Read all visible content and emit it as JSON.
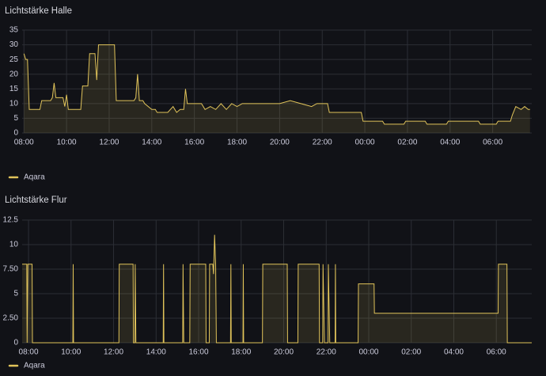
{
  "chart_data": [
    {
      "type": "line",
      "title": "Lichtstärke Halle",
      "x": [
        "08:00",
        "08:05",
        "08:10",
        "08:15",
        "08:45",
        "08:50",
        "09:15",
        "09:20",
        "09:25",
        "09:30",
        "09:50",
        "09:55",
        "10:00",
        "10:05",
        "10:40",
        "10:45",
        "11:00",
        "11:05",
        "11:20",
        "11:25",
        "11:30",
        "12:15",
        "12:20",
        "13:10",
        "13:15",
        "13:20",
        "13:25",
        "13:35",
        "13:40",
        "14:00",
        "14:10",
        "14:15",
        "14:45",
        "15:00",
        "15:10",
        "15:20",
        "15:30",
        "15:35",
        "15:40",
        "16:20",
        "16:30",
        "16:45",
        "17:00",
        "17:15",
        "17:30",
        "17:45",
        "18:00",
        "18:15",
        "18:30",
        "19:00",
        "19:30",
        "20:00",
        "20:30",
        "21:00",
        "21:30",
        "21:45",
        "22:15",
        "22:20",
        "23:50",
        "23:55",
        "00:50",
        "00:55",
        "01:50",
        "01:55",
        "02:50",
        "02:55",
        "03:50",
        "03:55",
        "05:20",
        "05:25",
        "06:10",
        "06:15",
        "06:50",
        "06:55",
        "07:05",
        "07:20",
        "07:30",
        "07:40",
        "07:45"
      ],
      "series": [
        {
          "name": "Aqara",
          "color": "#e0c35a",
          "values": [
            27,
            25,
            25,
            8,
            8,
            11,
            11,
            12,
            17,
            12,
            12,
            9,
            13,
            8,
            8,
            16,
            16,
            27,
            27,
            18,
            30,
            30,
            11,
            11,
            12,
            20,
            11,
            11,
            10,
            8,
            8,
            7,
            7,
            9,
            7,
            8,
            8,
            15,
            10,
            10,
            8,
            9,
            8,
            10,
            8,
            10,
            9,
            10,
            10,
            10,
            10,
            10,
            11,
            10,
            9,
            10,
            10,
            7,
            7,
            4,
            4,
            3,
            3,
            4,
            4,
            3,
            3,
            4,
            4,
            3,
            3,
            4,
            4,
            6,
            9,
            8,
            9,
            8,
            8
          ]
        }
      ],
      "xlim": [
        "07:55",
        "07:50"
      ],
      "xticks": [
        "08:00",
        "10:00",
        "12:00",
        "14:00",
        "16:00",
        "18:00",
        "20:00",
        "22:00",
        "00:00",
        "02:00",
        "04:00",
        "06:00"
      ],
      "ylim": [
        0,
        35
      ],
      "yticks": [
        0,
        5,
        10,
        15,
        20,
        25,
        30,
        35
      ],
      "grid": true,
      "legend": "bottom-left"
    },
    {
      "type": "line",
      "title": "Lichtstärke Flur",
      "x": [
        "07:42",
        "07:55",
        "07:56",
        "07:58",
        "08:10",
        "08:11",
        "10:05",
        "10:06",
        "10:07",
        "12:15",
        "12:16",
        "12:55",
        "12:56",
        "13:00",
        "13:01",
        "13:03",
        "14:20",
        "14:21",
        "14:22",
        "15:15",
        "15:16",
        "15:18",
        "15:35",
        "15:36",
        "16:20",
        "16:21",
        "16:30",
        "16:31",
        "16:40",
        "16:42",
        "16:45",
        "16:48",
        "16:50",
        "17:30",
        "17:31",
        "17:32",
        "18:05",
        "18:06",
        "18:07",
        "19:00",
        "19:01",
        "20:10",
        "20:11",
        "20:40",
        "20:41",
        "21:40",
        "21:41",
        "21:50",
        "21:51",
        "21:55",
        "22:05",
        "22:06",
        "22:10",
        "22:25",
        "22:26",
        "22:27",
        "23:30",
        "23:31",
        "00:15",
        "00:16",
        "06:05",
        "06:06",
        "06:30",
        "06:31",
        "07:40"
      ],
      "series": [
        {
          "name": "Aqara",
          "color": "#e0c35a",
          "values": [
            8,
            8,
            0,
            8,
            8,
            0,
            0,
            8,
            0,
            0,
            8,
            8,
            0,
            0,
            8,
            0,
            0,
            8,
            0,
            0,
            8,
            0,
            0,
            8,
            8,
            0,
            0,
            8,
            8,
            7,
            11,
            8,
            0,
            0,
            8,
            0,
            0,
            8,
            0,
            0,
            8,
            8,
            0,
            0,
            8,
            8,
            0,
            0,
            8,
            0,
            0,
            8,
            0,
            0,
            8,
            0,
            0,
            6,
            6,
            3,
            3,
            8,
            8,
            0,
            0
          ]
        }
      ],
      "xlim": [
        "07:42",
        "07:40"
      ],
      "xticks": [
        "08:00",
        "10:00",
        "12:00",
        "14:00",
        "16:00",
        "18:00",
        "20:00",
        "22:00",
        "00:00",
        "02:00",
        "04:00",
        "06:00"
      ],
      "ylim": [
        0,
        12.5
      ],
      "yticks": [
        0,
        {
          "value": 2.5,
          "label": "2.50"
        },
        5,
        {
          "value": 7.5,
          "label": "7.50"
        },
        10,
        12.5
      ],
      "grid": true,
      "legend": "bottom-left"
    }
  ]
}
